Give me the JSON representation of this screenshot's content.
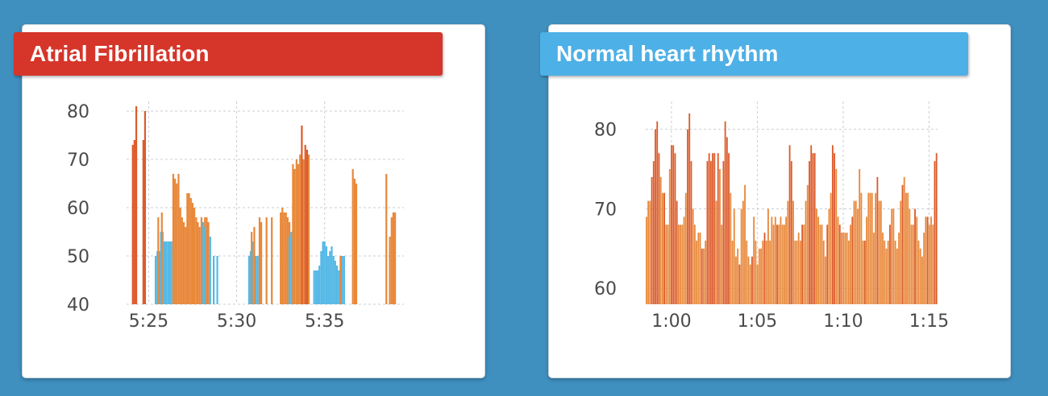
{
  "chart_data": [
    {
      "type": "bar",
      "title": "Atrial Fibrillation",
      "xlabel": "",
      "ylabel": "",
      "ylim": [
        40,
        82
      ],
      "yticks": [
        40,
        50,
        60,
        70,
        80
      ],
      "xticks": [
        "5:25",
        "5:30",
        "5:35"
      ],
      "xtick_positions": [
        5.4167,
        5.5,
        5.5833
      ],
      "xlim": [
        5.3958,
        5.6583
      ],
      "grid": true,
      "colors": {
        "irregular": "#e8883a",
        "irregular_dark": "#dc5a2a",
        "regular": "#55b8e6"
      },
      "series": [
        {
          "name": "",
          "color": "orange",
          "x": [
            5.4017,
            5.4033,
            5.405,
            5.4117,
            5.4133
          ],
          "values": [
            73,
            74,
            81,
            74,
            80
          ]
        },
        {
          "name": "",
          "color": "blue",
          "x": [
            5.4233,
            5.425,
            5.4267,
            5.4283,
            5.43,
            5.4317,
            5.4333,
            5.435,
            5.4367,
            5.4383
          ],
          "values": [
            50,
            51,
            51,
            55,
            55,
            53,
            53,
            53,
            53,
            53
          ]
        },
        {
          "name": "",
          "color": "orange",
          "x": [
            5.4258,
            5.4292,
            5.44,
            5.4417,
            5.4433,
            5.445,
            5.4467,
            5.4483,
            5.45,
            5.4517,
            5.4533,
            5.455,
            5.4567,
            5.4583,
            5.46,
            5.4617,
            5.4633,
            5.465,
            5.4667,
            5.4683,
            5.47,
            5.4717,
            5.4733
          ],
          "values": [
            58,
            59,
            67,
            66,
            65,
            67,
            60,
            58,
            57,
            56,
            63,
            63,
            62,
            61,
            60,
            58,
            57,
            56,
            58,
            56,
            58,
            58,
            57
          ]
        },
        {
          "name": "",
          "color": "blue",
          "x": [
            5.4683,
            5.47,
            5.475,
            5.4783,
            5.4817
          ],
          "values": [
            57,
            56,
            54,
            50,
            50
          ]
        },
        {
          "name": "",
          "color": "blue",
          "x": [
            5.5117,
            5.5133,
            5.515,
            5.5167,
            5.5183,
            5.52
          ],
          "values": [
            50,
            51,
            53,
            51,
            50,
            50
          ]
        },
        {
          "name": "",
          "color": "orange",
          "x": [
            5.5142,
            5.5167,
            5.5217,
            5.5233,
            5.5283,
            5.5333
          ],
          "values": [
            55,
            56,
            58,
            57,
            58,
            58
          ]
        },
        {
          "name": "",
          "color": "orange",
          "x": [
            5.5417,
            5.5433,
            5.545,
            5.5467,
            5.5483,
            5.55
          ],
          "values": [
            59,
            60,
            59,
            59,
            58,
            57
          ]
        },
        {
          "name": "",
          "color": "blue",
          "x": [
            5.55,
            5.5517
          ],
          "values": [
            54,
            55
          ]
        },
        {
          "name": "",
          "color": "orange",
          "x": [
            5.5533,
            5.555,
            5.5567,
            5.5583,
            5.56,
            5.5617,
            5.5633,
            5.565,
            5.5667,
            5.5683
          ],
          "values": [
            69,
            68,
            70,
            69,
            71,
            77,
            70,
            73,
            72,
            71
          ]
        },
        {
          "name": "",
          "color": "blue",
          "x": [
            5.5733,
            5.575,
            5.5767,
            5.5783,
            5.58,
            5.5817,
            5.5833,
            5.585,
            5.5867,
            5.5883,
            5.59,
            5.5917,
            5.5933,
            5.595,
            5.5967,
            5.5983,
            5.6,
            5.6017
          ],
          "values": [
            47,
            47,
            47,
            48,
            51,
            53,
            53,
            52,
            50,
            51,
            52,
            50,
            49,
            48,
            47,
            47,
            50,
            50
          ]
        },
        {
          "name": "",
          "color": "orange",
          "x": [
            5.5983,
            5.61,
            5.6117,
            5.6133,
            5.6417,
            5.645,
            5.6467,
            5.6483,
            5.65
          ],
          "values": [
            50,
            68,
            66,
            65,
            67,
            54,
            58,
            59,
            59
          ]
        }
      ]
    },
    {
      "type": "bar",
      "title": "Normal heart rhythm",
      "xlabel": "",
      "ylabel": "",
      "ylim": [
        58,
        83
      ],
      "yticks": [
        60,
        70,
        80
      ],
      "xticks": [
        "1:00",
        "1:05",
        "1:10",
        "1:15"
      ],
      "xtick_positions": [
        1.0,
        1.0833,
        1.1667,
        1.25
      ],
      "xlim": [
        0.975,
        1.2583
      ],
      "grid": true,
      "colors": {
        "bar": "#e8883a",
        "bar_dark": "#dc5a2a"
      },
      "series": [
        {
          "name": "",
          "values": [
            69,
            71,
            71,
            74,
            76,
            80,
            81,
            77,
            74,
            72,
            72,
            68,
            68,
            75,
            78,
            78,
            77,
            71,
            68,
            68,
            68,
            69,
            72,
            80,
            82,
            76,
            70,
            68,
            66,
            67,
            67,
            65,
            65,
            66,
            76,
            77,
            76,
            77,
            77,
            71,
            77,
            75,
            68,
            76,
            81,
            79,
            77,
            72,
            66,
            70,
            64,
            65,
            63,
            70,
            71,
            73,
            66,
            64,
            63,
            64,
            69,
            66,
            63,
            65,
            65,
            66,
            67,
            66,
            70,
            66,
            69,
            68,
            69,
            68,
            68,
            69,
            68,
            68,
            69,
            71,
            78,
            76,
            71,
            66,
            66,
            67,
            66,
            68,
            68,
            71,
            73,
            76,
            78,
            77,
            77,
            70,
            69,
            68,
            68,
            66,
            64,
            68,
            70,
            72,
            78,
            77,
            75,
            69,
            68,
            67,
            67,
            67,
            67,
            66,
            68,
            69,
            71,
            71,
            70,
            75,
            72,
            66,
            66,
            69,
            72,
            72,
            72,
            67,
            72,
            74,
            71,
            71,
            67,
            66,
            65,
            66,
            68,
            70,
            70,
            66,
            65,
            67,
            71,
            73,
            74,
            72,
            72,
            70,
            68,
            68,
            70,
            69,
            66,
            65,
            64,
            67,
            69,
            69,
            68,
            69,
            68,
            76,
            77
          ]
        }
      ]
    }
  ]
}
